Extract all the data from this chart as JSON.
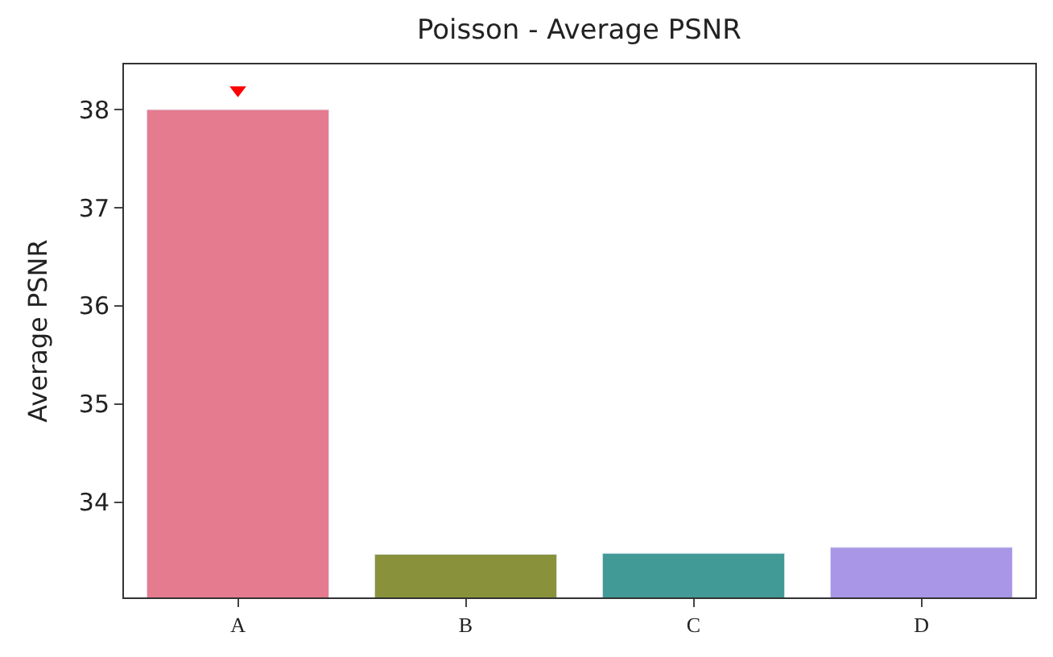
{
  "chart_data": {
    "type": "bar",
    "title": "Poisson - Average PSNR",
    "ylabel": "Average PSNR",
    "categories": [
      "A",
      "B",
      "C",
      "D"
    ],
    "series": [
      {
        "values": [
          38.0,
          33.47,
          33.48,
          33.54
        ],
        "colors": [
          "#e57b8f",
          "#8a913b",
          "#419a96",
          "#a996e6"
        ]
      },
      {
        "type": "scatter",
        "x": [
          "A"
        ],
        "values": [
          38.2
        ],
        "color": "#ff0000",
        "marker": "triangle"
      }
    ],
    "ylim": [
      33.03,
      38.46
    ],
    "yticks": [
      34,
      35,
      36,
      37,
      38
    ]
  }
}
